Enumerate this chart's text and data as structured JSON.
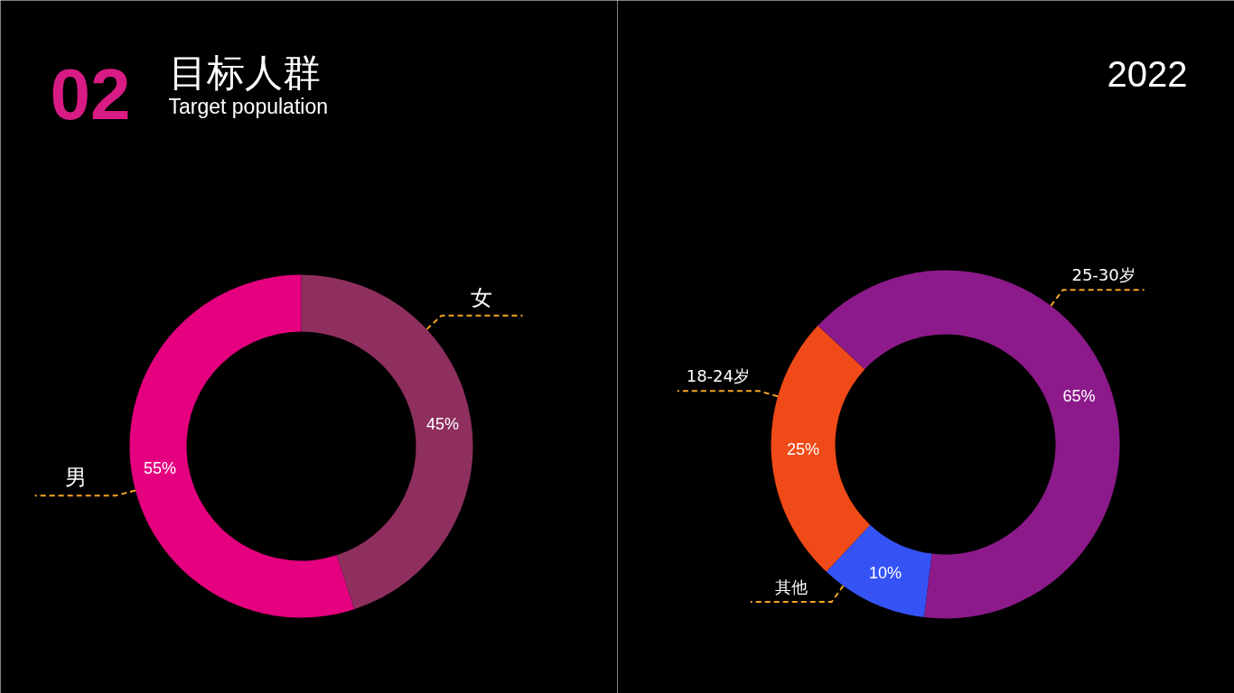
{
  "chart_data": [
    {
      "type": "donut",
      "title": "目标人群",
      "subtitle": "Target population",
      "annotations": [
        "02"
      ],
      "categories": [
        "男",
        "女"
      ],
      "values": [
        55,
        45
      ],
      "colors": [
        "#e4007f",
        "#8e2f5f"
      ],
      "value_labels": [
        "55%",
        "45%"
      ]
    },
    {
      "type": "donut",
      "annotations": [
        "2022"
      ],
      "categories": [
        "18-24岁",
        "其他",
        "25-30岁"
      ],
      "values": [
        25,
        10,
        65
      ],
      "colors": [
        "#f04a18",
        "#3553f5",
        "#8c1a8a"
      ],
      "value_labels": [
        "25%",
        "10%",
        "65%"
      ]
    }
  ]
}
